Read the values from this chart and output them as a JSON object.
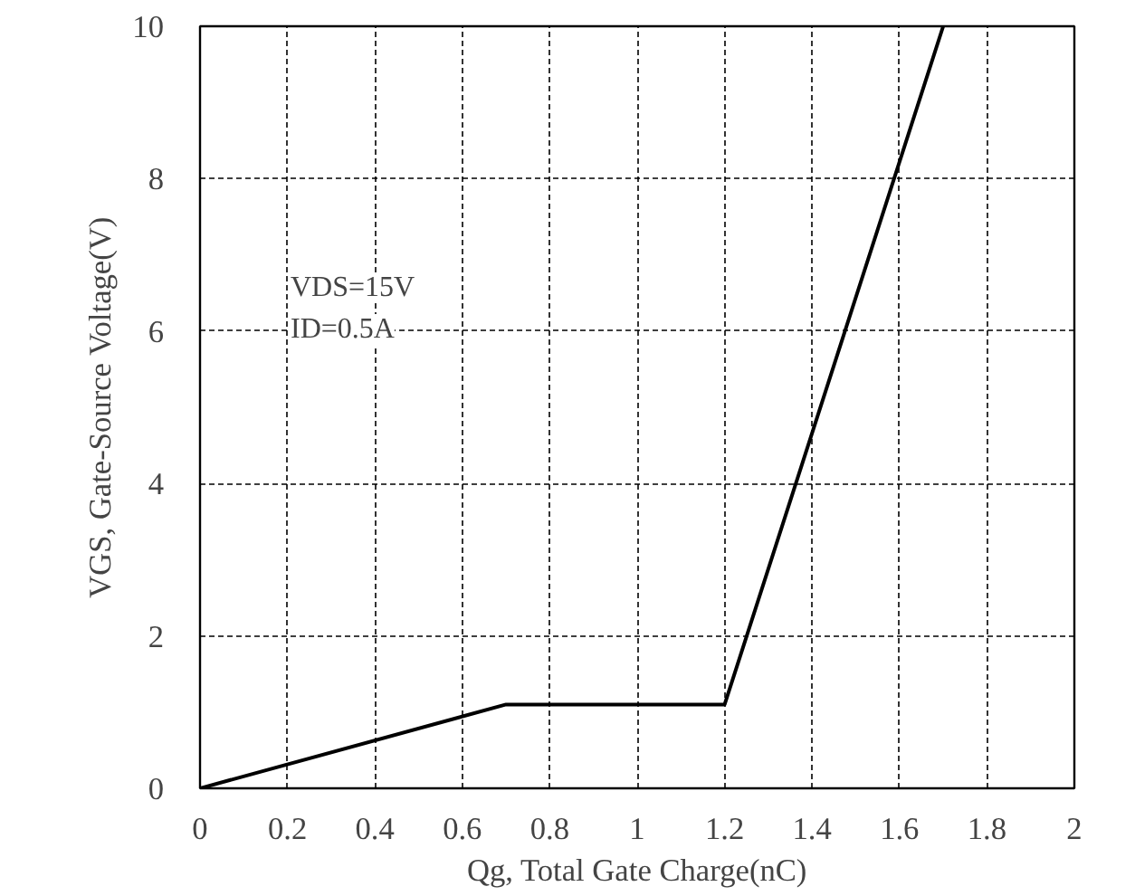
{
  "chart_data": {
    "type": "line",
    "xlabel": "Qg, Total Gate Charge(nC)",
    "ylabel": "VGS, Gate-Source Voltage(V)",
    "annotations": [
      "VDS=15V",
      "ID=0.5A"
    ],
    "x": [
      0,
      0.7,
      1.2,
      1.7
    ],
    "series": [
      {
        "color": "#000000",
        "values": [
          0,
          1.1,
          1.1,
          10
        ]
      }
    ],
    "xlim": [
      0,
      2
    ],
    "ylim": [
      0,
      10
    ],
    "xticks": [
      0,
      0.2,
      0.4,
      0.6,
      0.8,
      1,
      1.2,
      1.4,
      1.6,
      1.8,
      2
    ],
    "yticks": [
      0,
      2,
      4,
      6,
      8,
      10
    ],
    "grid": true,
    "marker": "none",
    "line_style": "solid"
  }
}
